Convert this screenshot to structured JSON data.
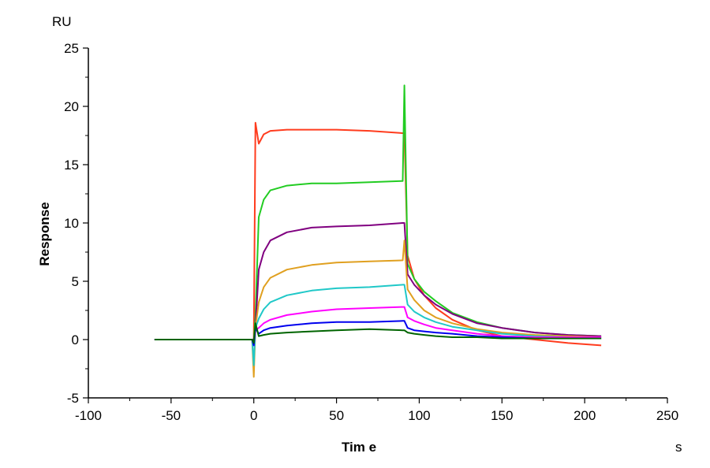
{
  "chart_data": {
    "type": "line",
    "title": "",
    "xlabel": "Tim e",
    "xunit": "s",
    "ylabel": "Response",
    "yunit": "RU",
    "xlim": [
      -100,
      250
    ],
    "ylim": [
      -5,
      25
    ],
    "xticks": [
      -100,
      -50,
      0,
      50,
      100,
      150,
      200,
      250
    ],
    "yticks": [
      -5,
      0,
      5,
      10,
      15,
      20,
      25
    ],
    "grid": false,
    "legend": "none",
    "x": [
      -60,
      -30,
      -1,
      0,
      1,
      3,
      6,
      10,
      20,
      35,
      50,
      70,
      90,
      91,
      93,
      97,
      103,
      110,
      120,
      135,
      150,
      170,
      190,
      210
    ],
    "series": [
      {
        "color": "#ff3c1e",
        "values": [
          0,
          0,
          0,
          0,
          18.6,
          16.8,
          17.6,
          17.9,
          18.0,
          18.0,
          18.0,
          17.9,
          17.7,
          17.7,
          7.2,
          5.2,
          3.8,
          2.7,
          1.7,
          0.8,
          0.3,
          0,
          -0.3,
          -0.5
        ]
      },
      {
        "color": "#22cc22",
        "values": [
          0,
          0,
          0,
          0,
          2,
          10.5,
          12.0,
          12.8,
          13.2,
          13.4,
          13.4,
          13.5,
          13.6,
          21.8,
          6.5,
          5.2,
          4.1,
          3.3,
          2.3,
          1.5,
          1.0,
          0.6,
          0.4,
          0.3
        ]
      },
      {
        "color": "#800080",
        "values": [
          0,
          0,
          0,
          0,
          1,
          6.0,
          7.5,
          8.5,
          9.2,
          9.6,
          9.7,
          9.8,
          10.0,
          10.0,
          5.6,
          4.7,
          3.8,
          3.0,
          2.2,
          1.4,
          1.0,
          0.6,
          0.4,
          0.3
        ]
      },
      {
        "color": "#e0a020",
        "values": [
          0,
          0,
          0,
          -3.2,
          1,
          3.2,
          4.5,
          5.3,
          6.0,
          6.4,
          6.6,
          6.7,
          6.8,
          8.5,
          4.3,
          3.4,
          2.5,
          1.9,
          1.4,
          0.9,
          0.6,
          0.4,
          0.3,
          0.2
        ]
      },
      {
        "color": "#20c8c8",
        "values": [
          0,
          0,
          0,
          -2.2,
          1,
          1.8,
          2.6,
          3.2,
          3.8,
          4.2,
          4.4,
          4.5,
          4.7,
          4.7,
          3.0,
          2.4,
          1.9,
          1.5,
          1.1,
          0.8,
          0.5,
          0.3,
          0.2,
          0.1
        ]
      },
      {
        "color": "#ff00ff",
        "values": [
          0,
          0,
          0,
          -0.5,
          0.8,
          1.0,
          1.4,
          1.7,
          2.1,
          2.4,
          2.6,
          2.7,
          2.8,
          2.8,
          1.9,
          1.6,
          1.3,
          1.0,
          0.8,
          0.5,
          0.3,
          0.2,
          0.2,
          0.2
        ]
      },
      {
        "color": "#0000ee",
        "values": [
          0,
          0,
          0,
          -0.5,
          1.0,
          0.5,
          0.8,
          1.0,
          1.2,
          1.4,
          1.5,
          1.5,
          1.6,
          1.6,
          1.0,
          0.8,
          0.7,
          0.6,
          0.5,
          0.3,
          0.2,
          0.1,
          0.1,
          0.1
        ]
      },
      {
        "color": "#006400",
        "values": [
          0,
          0,
          0,
          -0.3,
          1.4,
          0.3,
          0.4,
          0.5,
          0.6,
          0.7,
          0.8,
          0.9,
          0.8,
          0.8,
          0.6,
          0.5,
          0.4,
          0.3,
          0.2,
          0.2,
          0.1,
          0.1,
          0.1,
          0.1
        ]
      }
    ]
  }
}
